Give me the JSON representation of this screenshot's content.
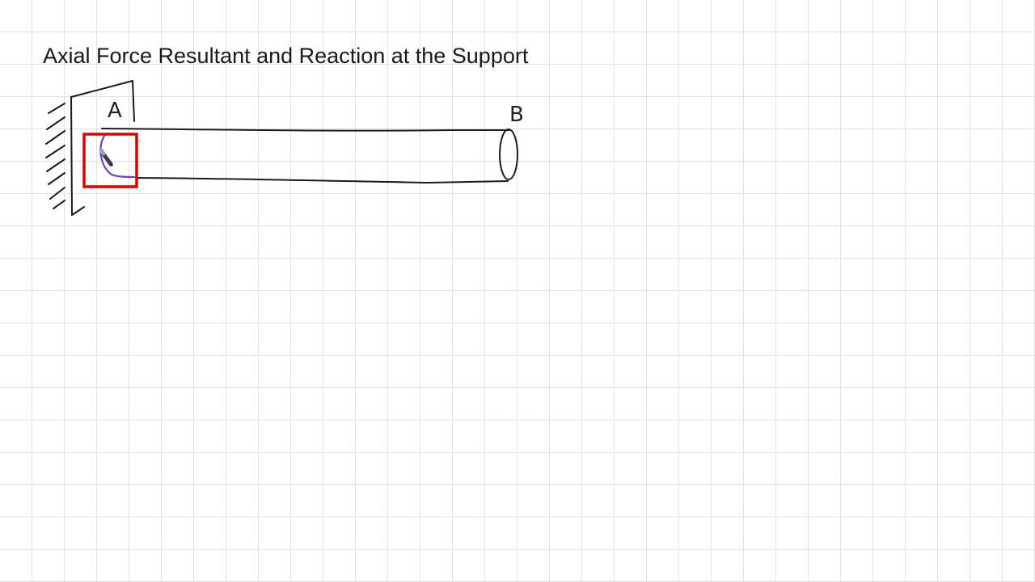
{
  "title": "Axial Force Resultant and Reaction at the Support",
  "diagram": {
    "point_a_label": "A",
    "point_b_label": "B",
    "fixed_support_icon": "hatched-wall-icon",
    "pen_cursor_icon": "pen-icon",
    "colors": {
      "ink": "#1b1b1b",
      "annotation": "#6a3fd0",
      "highlight": "#e00000",
      "grid": "#e2e2e2"
    }
  }
}
